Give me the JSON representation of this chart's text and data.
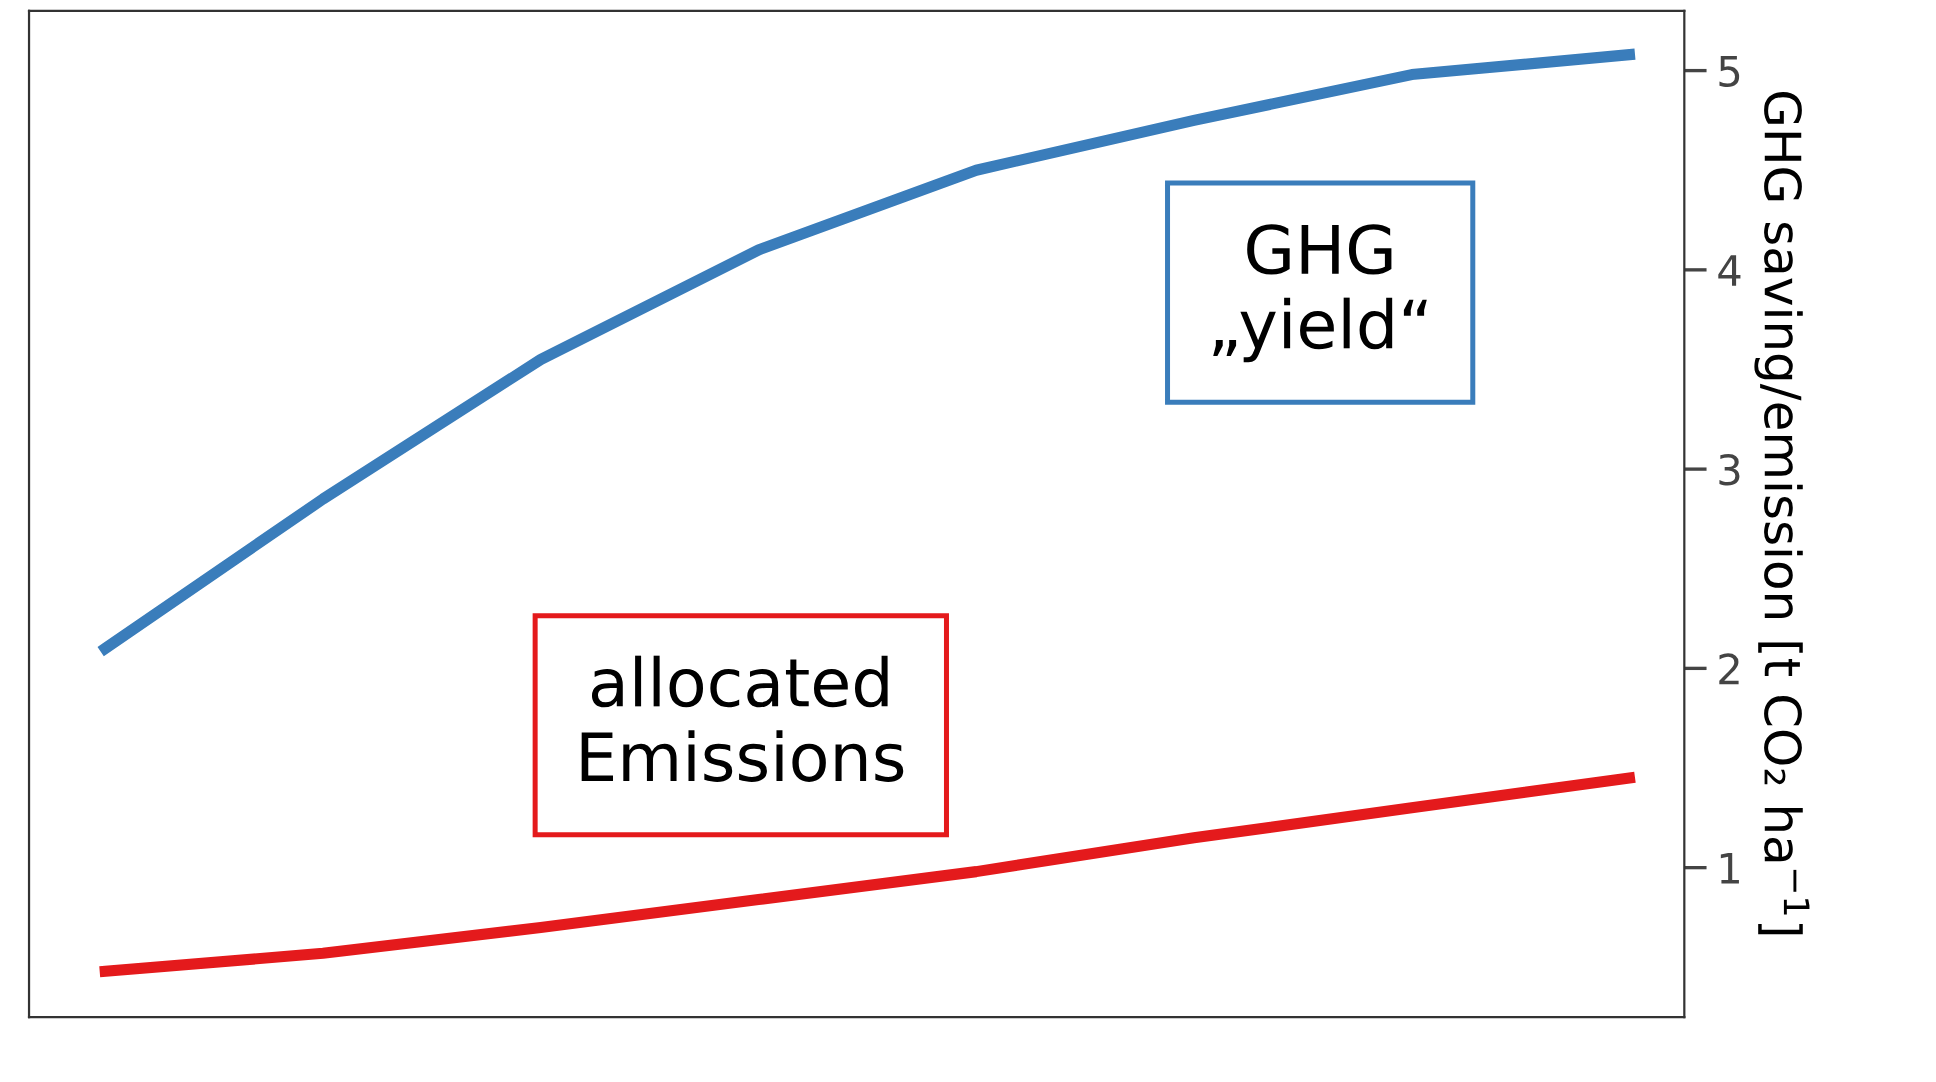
{
  "chart_data": {
    "type": "line",
    "ylabel": "GHG saving/emission [t CO₂ ha$^{−1}$]",
    "categories": [
      null,
      null,
      null,
      null,
      null,
      null,
      null,
      null
    ],
    "ylim": [
      0.25,
      5.3
    ],
    "yticks": [
      1,
      2,
      3,
      4,
      5
    ],
    "tick_labels": "y",
    "grid": false,
    "legend": false,
    "marker": "none",
    "line_style": "solid",
    "series": [
      {
        "color": "#3a7dbb",
        "values": [
          2.1,
          2.85,
          3.55,
          4.1,
          4.5,
          4.75,
          4.98,
          5.08
        ]
      },
      {
        "color": "#e41a1c",
        "values": [
          0.48,
          0.57,
          0.7,
          0.84,
          0.98,
          1.15,
          1.3,
          1.45
        ]
      }
    ],
    "annotations": [
      "GHG\n„yield“",
      "allocated\nEmissions"
    ]
  }
}
